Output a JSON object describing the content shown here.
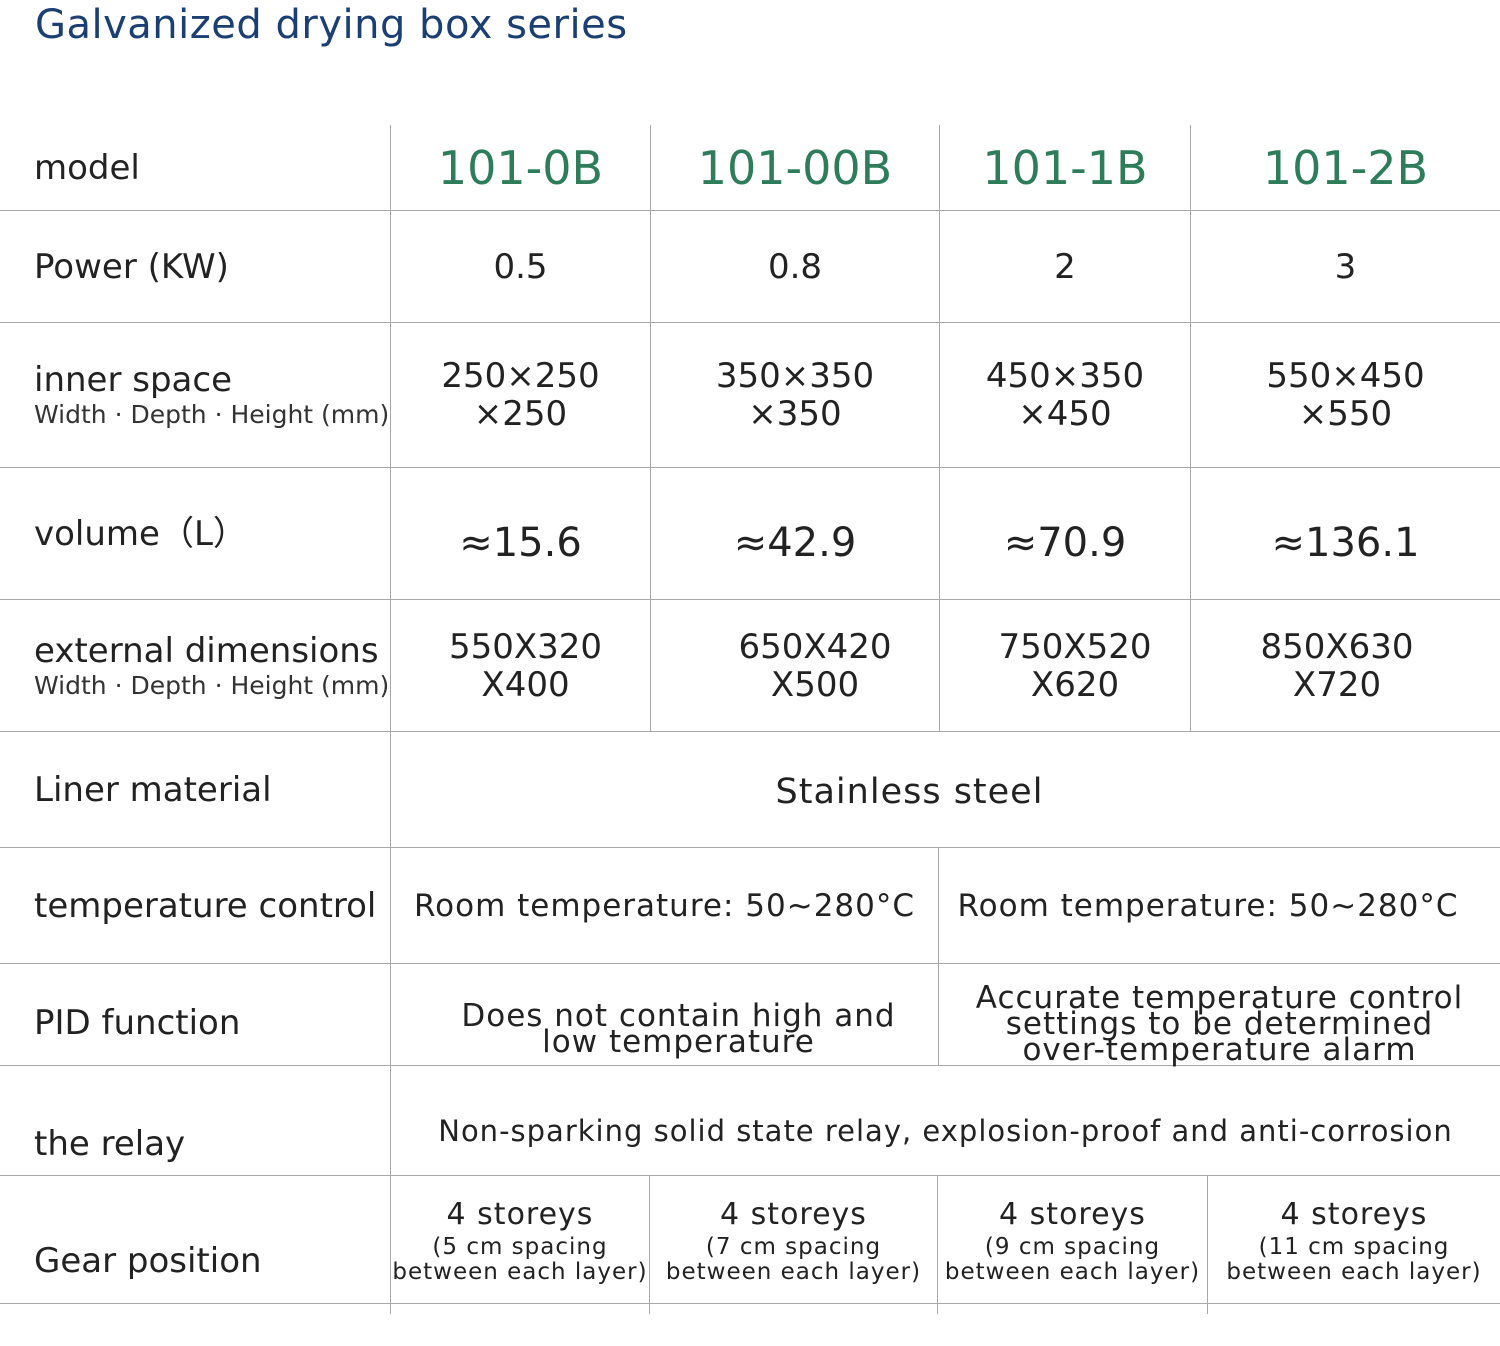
{
  "title": "Galvanized drying box series",
  "rows": {
    "model": {
      "label": "model",
      "values": [
        "101-0B",
        "101-00B",
        "101-1B",
        "101-2B"
      ]
    },
    "power": {
      "label": "Power (KW)",
      "values": [
        "0.5",
        "0.8",
        "2",
        "3"
      ]
    },
    "inner_space": {
      "label": "inner space",
      "sublabel": "Width · Depth · Height (mm)",
      "values": [
        {
          "line1": "250×250",
          "line2": "×250"
        },
        {
          "line1": "350×350",
          "line2": "×350"
        },
        {
          "line1": "450×350",
          "line2": "×450"
        },
        {
          "line1": "550×450",
          "line2": "×550"
        }
      ]
    },
    "volume": {
      "label": "volume（L）",
      "values": [
        "≈15.6",
        "≈42.9",
        "≈70.9",
        "≈136.1"
      ]
    },
    "external": {
      "label": "external dimensions",
      "sublabel": "Width · Depth · Height (mm)",
      "values": [
        {
          "line1": "550X320",
          "line2": "X400"
        },
        {
          "line1": "650X420",
          "line2": "X500"
        },
        {
          "line1": "750X520",
          "line2": "X620"
        },
        {
          "line1": "850X630",
          "line2": "X720"
        }
      ]
    },
    "liner": {
      "label": "Liner material",
      "value": "Stainless steel"
    },
    "temperature": {
      "label": "temperature control",
      "values": [
        "Room temperature: 50~280°C",
        "Room temperature: 50~280°C"
      ]
    },
    "pid": {
      "label": "PID function",
      "left": {
        "line1": "Does not contain high and",
        "line2": "low temperature"
      },
      "right": {
        "line1": "Accurate temperature control",
        "line2": "settings to be determined",
        "line3": "over-temperature alarm"
      }
    },
    "relay": {
      "label": "the relay",
      "value": "Non-sparking solid state relay, explosion-proof and anti-corrosion"
    },
    "gear": {
      "label": "Gear position",
      "values": [
        {
          "main": "4 storeys",
          "sub1": "(5 cm spacing",
          "sub2": "between each layer)"
        },
        {
          "main": "4 storeys",
          "sub1": "(7 cm spacing",
          "sub2": "between each layer)"
        },
        {
          "main": "4 storeys",
          "sub1": "(9 cm spacing",
          "sub2": "between each layer)"
        },
        {
          "main": "4 storeys",
          "sub1": "(11 cm spacing",
          "sub2": "between each layer)"
        }
      ]
    }
  }
}
